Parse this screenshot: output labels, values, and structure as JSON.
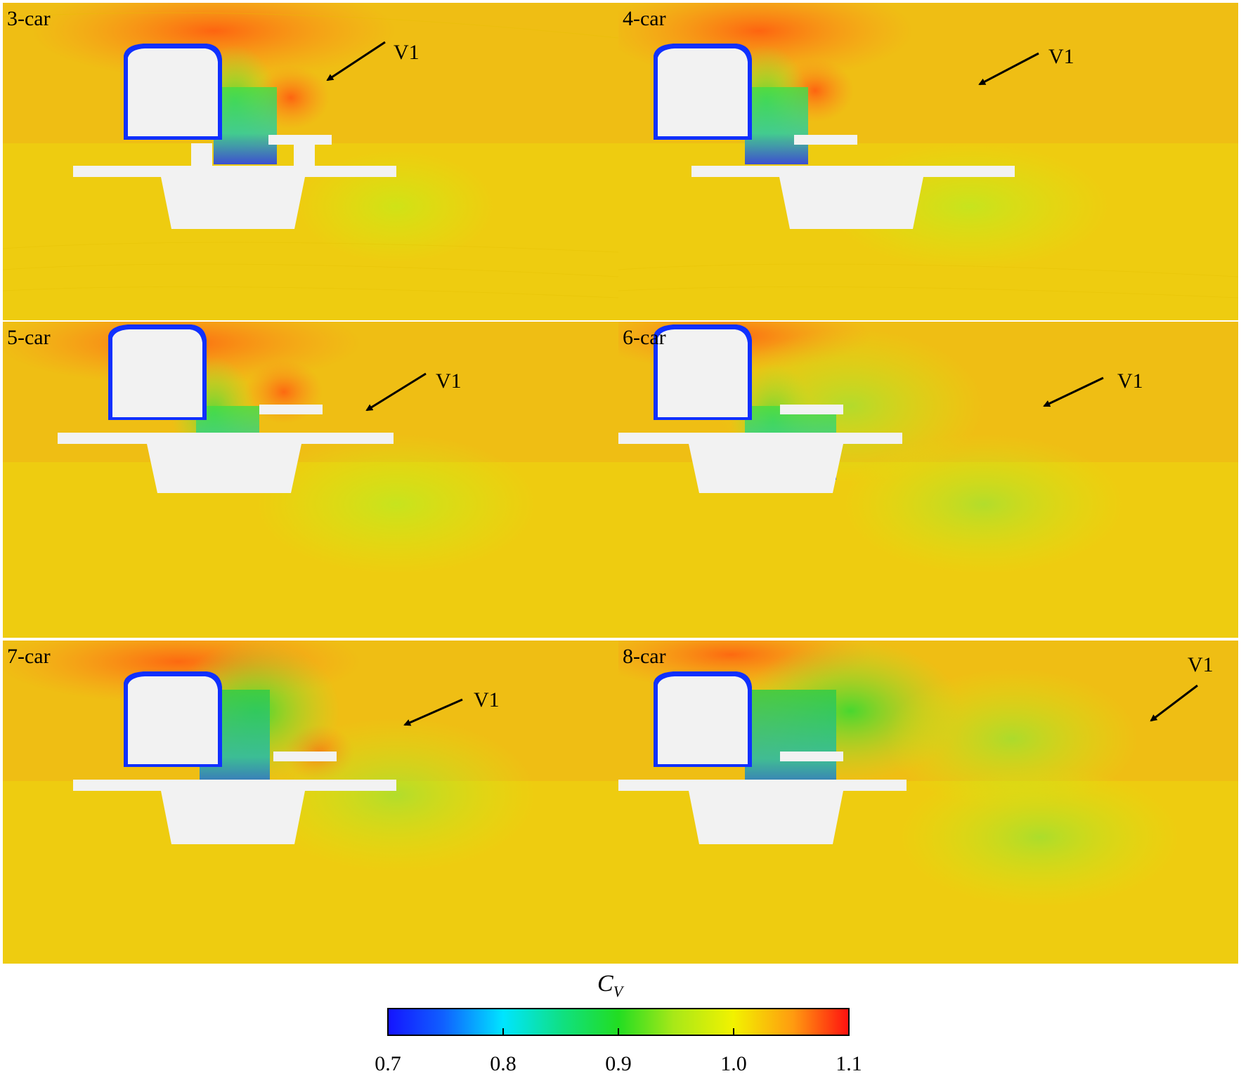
{
  "figure": {
    "panels": [
      {
        "label": "3-car",
        "vortex_label": "V1"
      },
      {
        "label": "4-car",
        "vortex_label": "V1"
      },
      {
        "label": "5-car",
        "vortex_label": "V1"
      },
      {
        "label": "6-car",
        "vortex_label": "V1"
      },
      {
        "label": "7-car",
        "vortex_label": "V1"
      },
      {
        "label": "8-car",
        "vortex_label": "V1"
      }
    ],
    "colorbar": {
      "title": "C",
      "title_subscript": "V",
      "ticks": [
        "0.7",
        "0.8",
        "0.9",
        "1.0",
        "1.1"
      ],
      "min": 0.7,
      "max": 1.1,
      "colors": [
        "#1414ff",
        "#00e5ff",
        "#22dd22",
        "#f2f200",
        "#ff1010"
      ]
    }
  }
}
